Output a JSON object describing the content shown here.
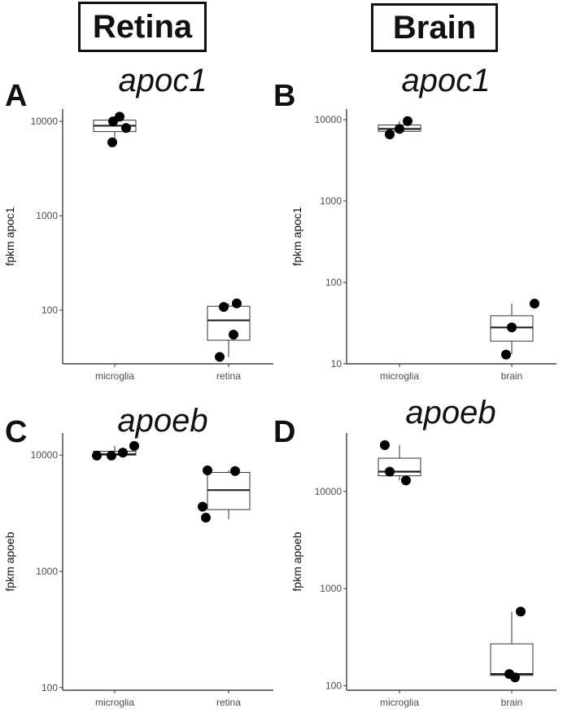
{
  "headers": {
    "retina": "Retina",
    "brain": "Brain"
  },
  "chart_data": [
    {
      "type": "box",
      "panel": "A",
      "title": "apoc1",
      "ylabel": "fpkm apoc1",
      "yscale": "log",
      "ylim": [
        27,
        13500
      ],
      "yticks": [
        100,
        1000,
        10000
      ],
      "ytick_labels": [
        "100",
        "1000",
        "10000"
      ],
      "categories": [
        "microglia",
        "retina"
      ],
      "boxes": [
        {
          "category": "microglia",
          "whisker_low": 6000,
          "q1": 7800,
          "median": 9000,
          "q3": 10300,
          "whisker_high": 11200
        },
        {
          "category": "retina",
          "whisker_low": 32,
          "q1": 48,
          "median": 78,
          "q3": 110,
          "whisker_high": 118
        }
      ],
      "points": [
        {
          "category": "microglia",
          "y": 11200
        },
        {
          "category": "microglia",
          "y": 10000
        },
        {
          "category": "microglia",
          "y": 8500
        },
        {
          "category": "microglia",
          "y": 6000
        },
        {
          "category": "retina",
          "y": 108
        },
        {
          "category": "retina",
          "y": 118
        },
        {
          "category": "retina",
          "y": 55
        },
        {
          "category": "retina",
          "y": 32
        }
      ]
    },
    {
      "type": "box",
      "panel": "B",
      "title": "apoc1",
      "ylabel": "fpkm apoc1",
      "yscale": "log",
      "ylim": [
        10,
        13500
      ],
      "yticks": [
        10,
        100,
        1000,
        10000
      ],
      "ytick_labels": [
        "10",
        "100",
        "1000",
        "10000"
      ],
      "categories": [
        "microglia",
        "brain"
      ],
      "boxes": [
        {
          "category": "microglia",
          "whisker_low": 6800,
          "q1": 7200,
          "median": 7700,
          "q3": 8600,
          "whisker_high": 9600
        },
        {
          "category": "brain",
          "whisker_low": 13,
          "q1": 19,
          "median": 28,
          "q3": 39,
          "whisker_high": 55
        }
      ],
      "points": [
        {
          "category": "microglia",
          "y": 9600
        },
        {
          "category": "microglia",
          "y": 7700
        },
        {
          "category": "microglia",
          "y": 6600
        },
        {
          "category": "brain",
          "y": 55
        },
        {
          "category": "brain",
          "y": 28
        },
        {
          "category": "brain",
          "y": 13
        }
      ]
    },
    {
      "type": "box",
      "panel": "C",
      "title": "apoeb",
      "ylabel": "fpkm apoeb",
      "yscale": "log",
      "ylim": [
        95,
        15500
      ],
      "yticks": [
        100,
        1000,
        10000
      ],
      "ytick_labels": [
        "100",
        "1000",
        "10000"
      ],
      "categories": [
        "microglia",
        "retina"
      ],
      "boxes": [
        {
          "category": "microglia",
          "whisker_low": 9900,
          "q1": 10000,
          "median": 10200,
          "q3": 10800,
          "whisker_high": 12000
        },
        {
          "category": "retina",
          "whisker_low": 2800,
          "q1": 3400,
          "median": 5000,
          "q3": 7100,
          "whisker_high": 7400
        }
      ],
      "points": [
        {
          "category": "microglia",
          "y": 9900
        },
        {
          "category": "microglia",
          "y": 9900
        },
        {
          "category": "microglia",
          "y": 10500
        },
        {
          "category": "microglia",
          "y": 12000
        },
        {
          "category": "retina",
          "y": 7400
        },
        {
          "category": "retina",
          "y": 7300
        },
        {
          "category": "retina",
          "y": 3600
        },
        {
          "category": "retina",
          "y": 2900
        }
      ]
    },
    {
      "type": "box",
      "panel": "D",
      "title": "apoeb",
      "ylabel": "fpkm apoeb",
      "yscale": "log",
      "ylim": [
        90,
        40000
      ],
      "yticks": [
        100,
        1000,
        10000
      ],
      "ytick_labels": [
        "100",
        "1000",
        "10000"
      ],
      "categories": [
        "microglia",
        "brain"
      ],
      "boxes": [
        {
          "category": "microglia",
          "whisker_low": 13000,
          "q1": 14500,
          "median": 16000,
          "q3": 22000,
          "whisker_high": 30000
        },
        {
          "category": "brain",
          "whisker_low": 120,
          "q1": 128,
          "median": 132,
          "q3": 270,
          "whisker_high": 580
        }
      ],
      "points": [
        {
          "category": "microglia",
          "y": 30000
        },
        {
          "category": "microglia",
          "y": 16000
        },
        {
          "category": "microglia",
          "y": 13000
        },
        {
          "category": "brain",
          "y": 580
        },
        {
          "category": "brain",
          "y": 132
        },
        {
          "category": "brain",
          "y": 122
        }
      ]
    }
  ]
}
